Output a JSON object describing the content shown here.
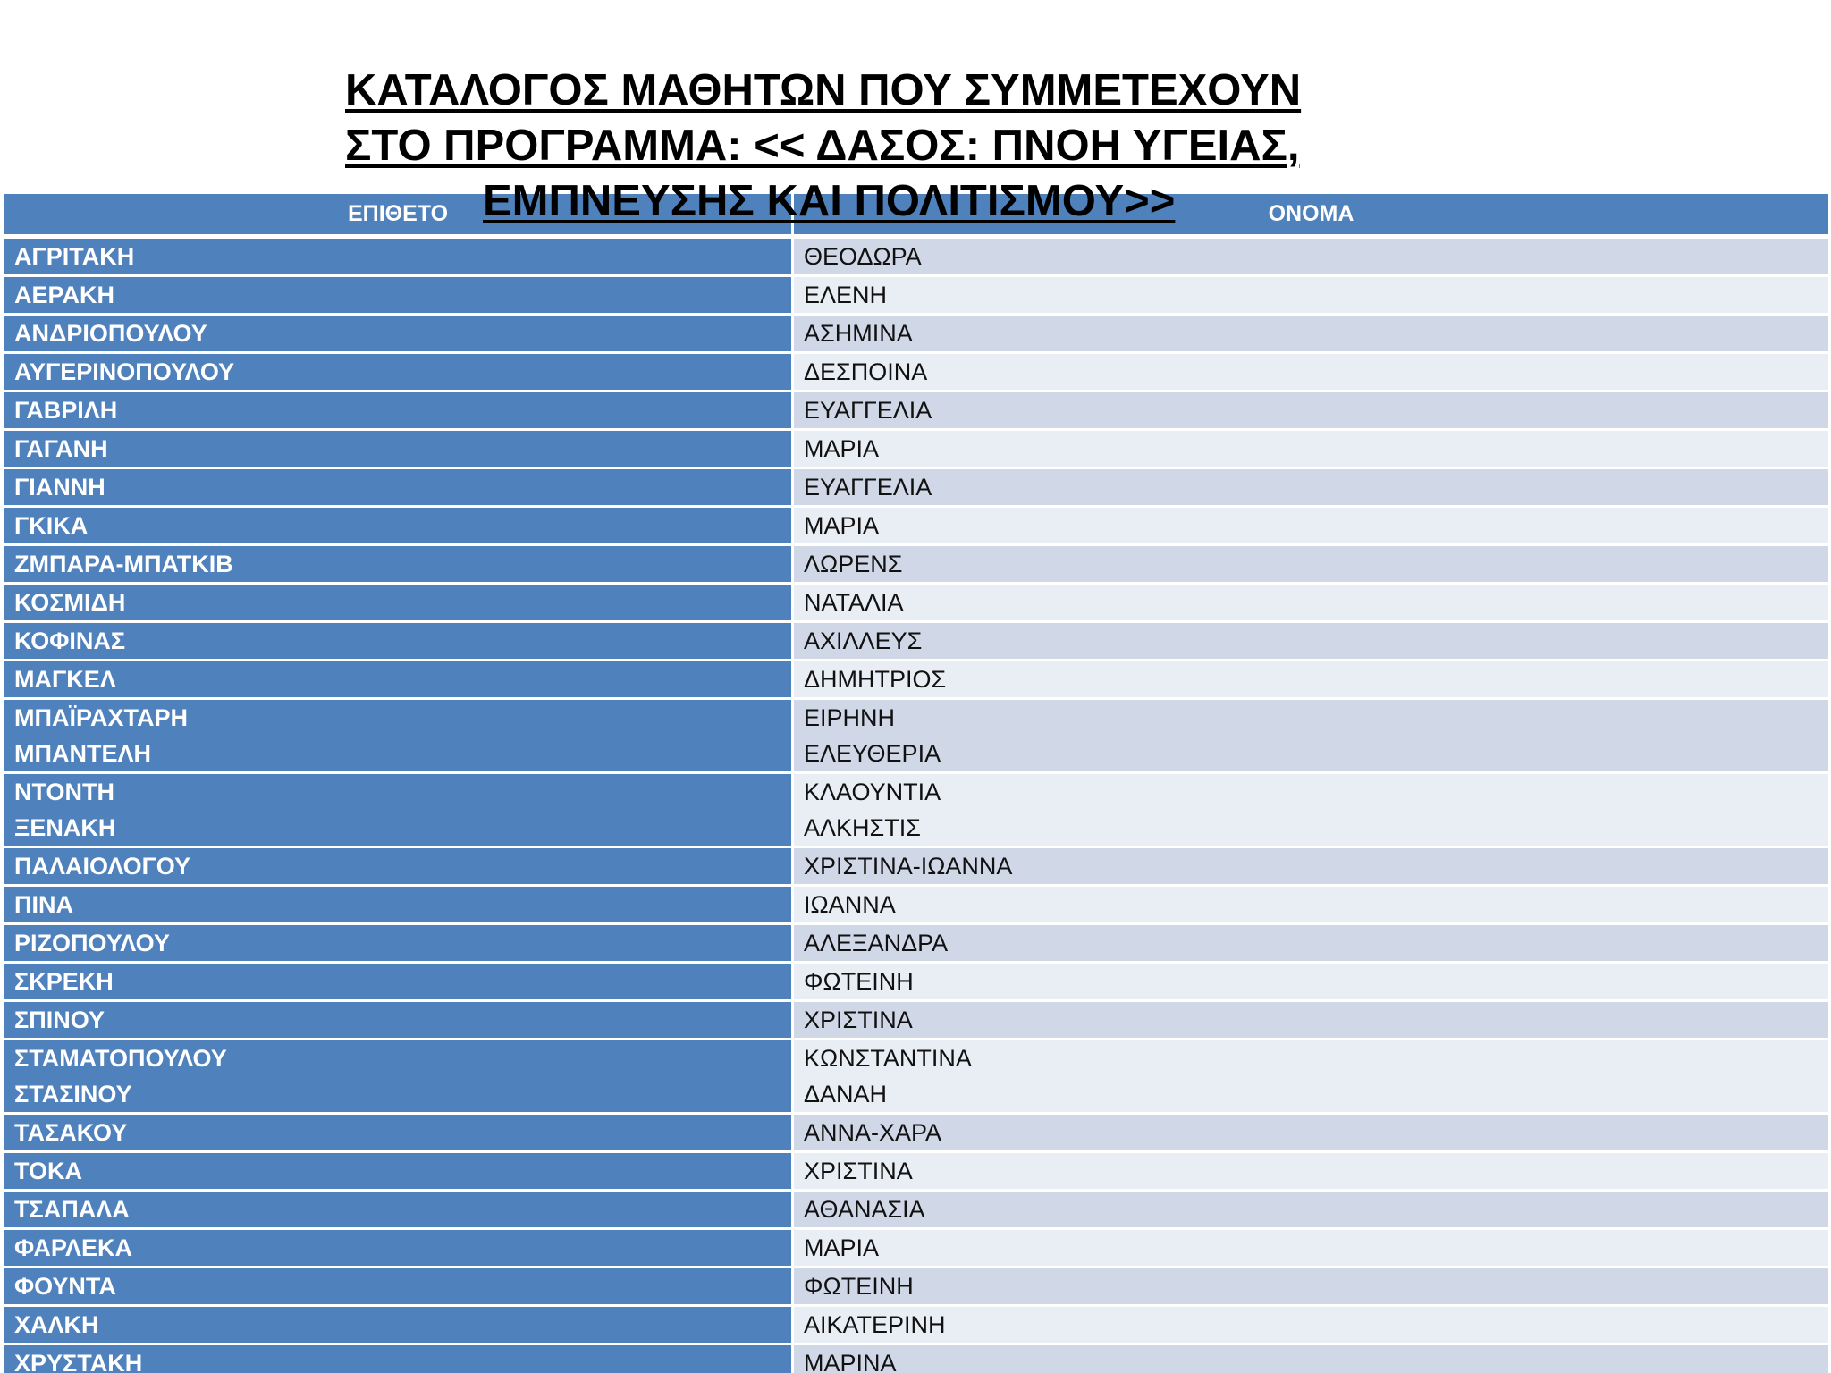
{
  "title": {
    "line1": "ΚΑΤΑΛΟΓΟΣ ΜΑΘΗΤΩΝ ΠΟΥ ΣΥΜΜΕΤΕΧΟΥΝ",
    "line2": "ΣΤΟ ΠΡΟΓΡΑΜΜΑ: << ΔΑΣΟΣ: ΠΝΟΗ ΥΓΕΙΑΣ,",
    "line3": "ΕΜΠΝΕΥΣΗΣ ΚΑΙ ΠΟΛΙΤΙΣΜΟΥ>>"
  },
  "table": {
    "headers": {
      "surname": "ΕΠΙΘΕΤΟ",
      "firstname": "ΟΝΟΜΑ"
    },
    "rows": [
      {
        "surname": "ΑΓΡΙΤΑΚΗ",
        "firstname": "ΘΕΟΔΩΡΑ"
      },
      {
        "surname": "ΑΕΡΑΚΗ",
        "firstname": "ΕΛΕΝΗ"
      },
      {
        "surname": "ΑΝΔΡΙΟΠΟΥΛΟΥ",
        "firstname": "ΑΣΗΜΙΝΑ"
      },
      {
        "surname": "ΑΥΓΕΡΙΝΟΠΟΥΛΟΥ",
        "firstname": "ΔΕΣΠΟΙΝΑ"
      },
      {
        "surname": "ΓΑΒΡΙΛΗ",
        "firstname": "ΕΥΑΓΓΕΛΙΑ"
      },
      {
        "surname": "ΓΑΓΑΝΗ",
        "firstname": "ΜΑΡΙΑ"
      },
      {
        "surname": "ΓΙΑΝΝΗ",
        "firstname": "ΕΥΑΓΓΕΛΙΑ"
      },
      {
        "surname": "ΓΚΙΚΑ",
        "firstname": "ΜΑΡΙΑ"
      },
      {
        "surname": "ΖΜΠΑΡΑ-ΜΠΑΤΚΙΒ",
        "firstname": "ΛΩΡΕΝΣ"
      },
      {
        "surname": "ΚΟΣΜΙΔΗ",
        "firstname": "ΝΑΤΑΛΙΑ"
      },
      {
        "surname": "ΚΟΦΙΝΑΣ",
        "firstname": "ΑΧΙΛΛΕΥΣ"
      },
      {
        "surname": "ΜΑΓΚΕΛ",
        "firstname": "ΔΗΜΗΤΡΙΟΣ"
      },
      {
        "surname": "ΜΠΑΪΡΑΧΤΑΡΗ",
        "firstname": "ΕΙΡΗΝΗ"
      },
      {
        "surname": "ΜΠΑΝΤΕΛΗ",
        "firstname": "ΕΛΕΥΘΕΡΙΑ"
      },
      {
        "surname": "ΝΤΟΝΤΗ",
        "firstname": "ΚΛΑΟΥΝΤΙΑ"
      },
      {
        "surname": "ΞΕΝΑΚΗ",
        "firstname": "ΑΛΚΗΣΤΙΣ"
      },
      {
        "surname": "ΠΑΛΑΙΟΛΟΓΟΥ",
        "firstname": "ΧΡΙΣΤΙΝΑ-ΙΩΑΝΝΑ"
      },
      {
        "surname": "ΠΙΝΑ",
        "firstname": "ΙΩΑΝΝΑ"
      },
      {
        "surname": "ΡΙΖΟΠΟΥΛΟΥ",
        "firstname": "ΑΛΕΞΑΝΔΡΑ"
      },
      {
        "surname": "ΣΚΡΕΚΗ",
        "firstname": "ΦΩΤΕΙΝΗ"
      },
      {
        "surname": "ΣΠΙΝΟΥ",
        "firstname": "ΧΡΙΣΤΙΝΑ"
      },
      {
        "surname": "ΣΤΑΜΑΤΟΠΟΥΛΟΥ",
        "firstname": "ΚΩΝΣΤΑΝΤΙΝΑ"
      },
      {
        "surname": "ΣΤΑΣΙΝΟΥ",
        "firstname": "ΔΑΝΑΗ"
      },
      {
        "surname": "ΤΑΣΑΚΟΥ",
        "firstname": "ΑΝΝΑ-ΧΑΡΑ"
      },
      {
        "surname": "ΤΟΚΑ",
        "firstname": "ΧΡΙΣΤΙΝΑ"
      },
      {
        "surname": "ΤΣΑΠΑΛΑ",
        "firstname": "ΑΘΑΝΑΣΙΑ"
      },
      {
        "surname": "ΦΑΡΛΕΚΑ",
        "firstname": "ΜΑΡΙΑ"
      },
      {
        "surname": "ΦΟΥΝΤΑ",
        "firstname": "ΦΩΤΕΙΝΗ"
      },
      {
        "surname": "ΧΑΛΚΗ",
        "firstname": "ΑΙΚΑΤΕΡΙΝΗ"
      },
      {
        "surname": "ΧΡΥΣΤΑΚΗ",
        "firstname": "ΜΑΡΙΝΑ"
      }
    ]
  },
  "colors": {
    "header_and_surname_bg": "#4f81bd",
    "band_dark": "#d0d8e8",
    "band_light": "#e9edf4"
  }
}
